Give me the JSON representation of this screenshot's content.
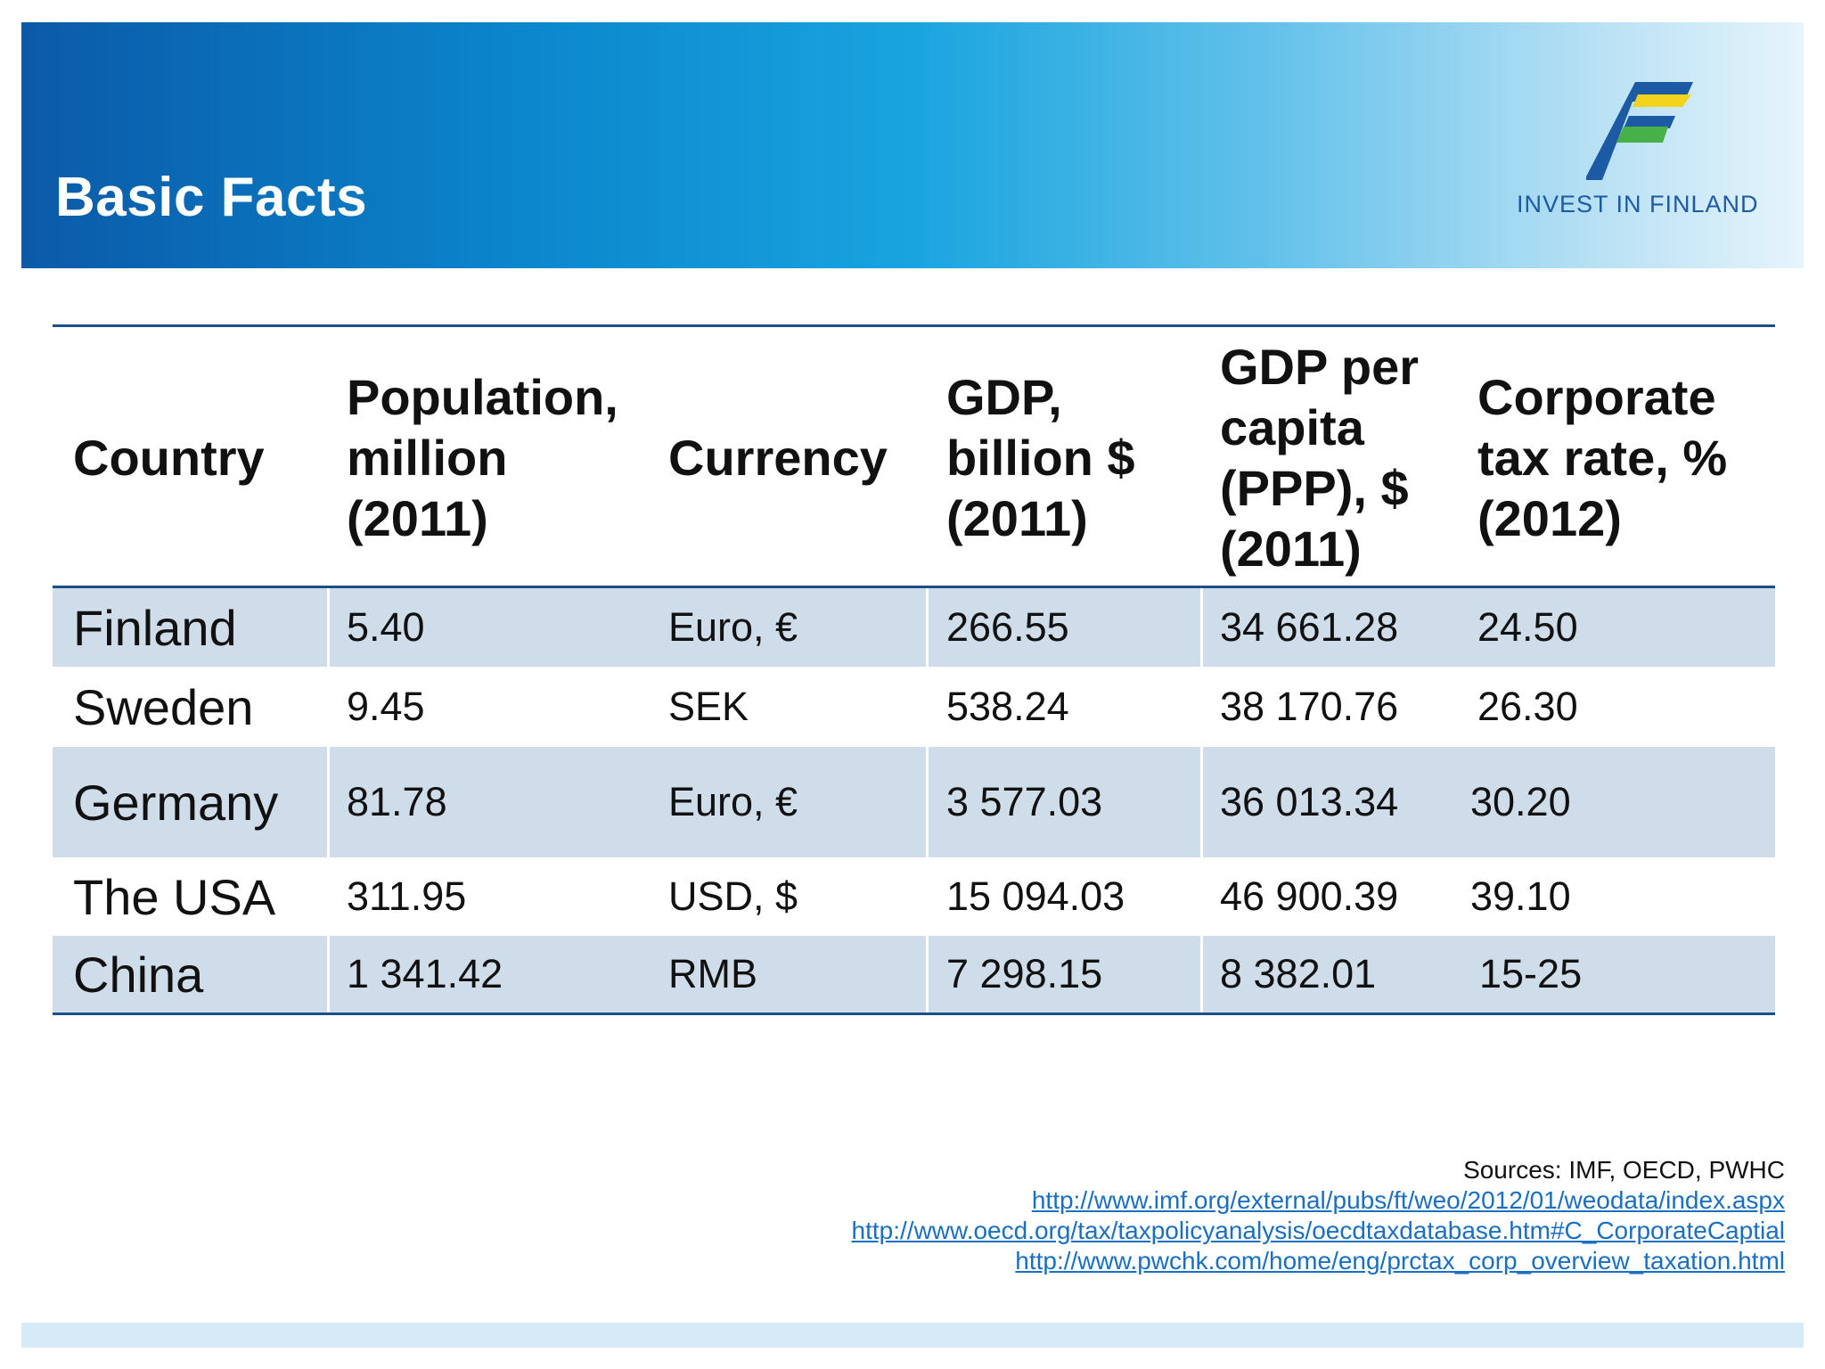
{
  "header": {
    "title": "Basic Facts",
    "logo_text": "INVEST IN FINLAND"
  },
  "colors": {
    "header_dark": "#0b5aa8",
    "header_light": "#e7f4fb",
    "rule": "#1c4f86",
    "row_shade": "#cfdce9",
    "link": "#1a6fc2",
    "logo_blue": "#1c5aa3",
    "logo_yellow": "#f4d31b",
    "logo_green": "#48b048"
  },
  "table": {
    "headers": [
      "Country",
      "Population,\n million\n(2011)",
      "Currency",
      "GDP,\nbillion $\n(2011)",
      "GDP per\ncapita\n(PPP), $\n(2011)",
      "Corporate\ntax rate, %\n(2012)"
    ],
    "rows": [
      [
        "Finland",
        "5.40",
        "Euro, €",
        "266.55",
        "34 661.28",
        "24.50"
      ],
      [
        "Sweden",
        "9.45",
        "SEK",
        "538.24",
        "38 170.76",
        "26.30"
      ],
      [
        "Germany",
        "81.78",
        "Euro, €",
        "3 577.03",
        "36 013.34",
        "30.20"
      ],
      [
        "The USA",
        "311.95",
        "USD, $",
        "15 094.03",
        "46 900.39",
        "39.10"
      ],
      [
        "China",
        "1 341.42",
        "RMB",
        "7 298.15",
        "8 382.01",
        "15-25"
      ]
    ]
  },
  "sources": {
    "label": "Sources: IMF, OECD, PWHC",
    "links": [
      "http://www.imf.org/external/pubs/ft/weo/2012/01/weodata/index.aspx",
      "http://www.oecd.org/tax/taxpolicyanalysis/oecdtaxdatabase.htm#C_CorporateCaptial",
      "http://www.pwchk.com/home/eng/prctax_corp_overview_taxation.html"
    ]
  }
}
